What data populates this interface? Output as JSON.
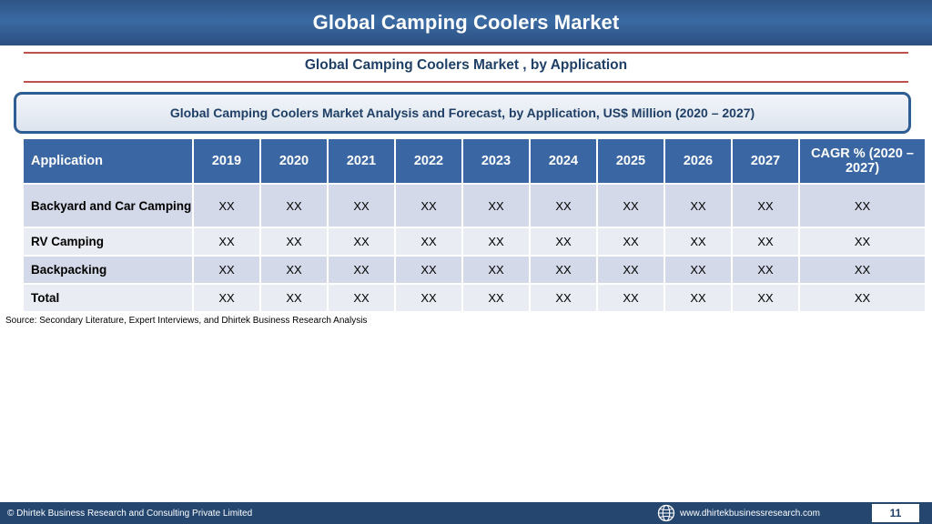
{
  "header": {
    "title": "Global Camping Coolers Market"
  },
  "section": {
    "subtitle": "Global Camping Coolers Market , by Application"
  },
  "table_title": "Global Camping Coolers Market  Analysis and Forecast, by Application, US$ Million (2020 – 2027)",
  "table": {
    "headers": [
      "Application",
      "2019",
      "2020",
      "2021",
      "2022",
      "2023",
      "2024",
      "2025",
      "2026",
      "2027",
      "CAGR % (2020 – 2027)"
    ],
    "rows": [
      {
        "label": "Backyard and Car Camping",
        "values": [
          "XX",
          "XX",
          "XX",
          "XX",
          "XX",
          "XX",
          "XX",
          "XX",
          "XX",
          "XX"
        ]
      },
      {
        "label": "RV Camping",
        "values": [
          "XX",
          "XX",
          "XX",
          "XX",
          "XX",
          "XX",
          "XX",
          "XX",
          "XX",
          "XX"
        ]
      },
      {
        "label": "Backpacking",
        "values": [
          "XX",
          "XX",
          "XX",
          "XX",
          "XX",
          "XX",
          "XX",
          "XX",
          "XX",
          "XX"
        ]
      },
      {
        "label": "Total",
        "values": [
          "XX",
          "XX",
          "XX",
          "XX",
          "XX",
          "XX",
          "XX",
          "XX",
          "XX",
          "XX"
        ]
      }
    ]
  },
  "source": "Source: Secondary Literature, Expert Interviews, and Dhirtek Business Research Analysis",
  "footer": {
    "copyright": "© Dhirtek Business Research and Consulting Private Limited",
    "globe_icon": "globe-icon",
    "website": "www.dhirtekbusinessresearch.com",
    "page_number": "11"
  },
  "colors": {
    "header_bar": "#2f5485",
    "header_cell": "#3a67a3",
    "row_odd": "#d3d9e8",
    "row_even": "#e9ecf3",
    "accent_rule": "#c0504d",
    "footer_bar": "#24466f"
  }
}
